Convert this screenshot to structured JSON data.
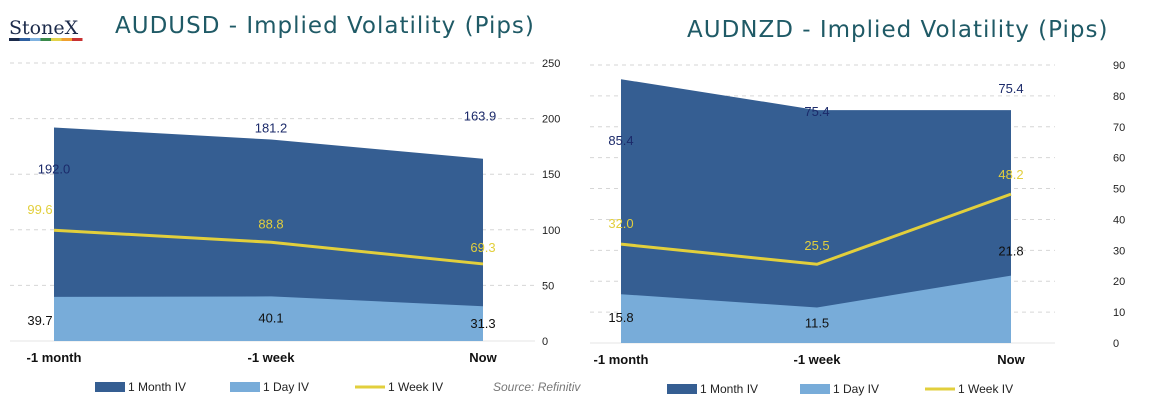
{
  "logo": {
    "text": "StoneX",
    "stripe_colors": [
      "#1b2a4a",
      "#2d5fa0",
      "#7fb2e0",
      "#3a8a4a",
      "#e3d34a",
      "#f0a030",
      "#c83232"
    ]
  },
  "source": "Source: Refinitiv",
  "colors": {
    "month": "#355e92",
    "day": "#78acd9",
    "week": "#e2cf3c",
    "month_label": "#1b2a6a",
    "day_label": "#111111",
    "week_label": "#e2cf3c"
  },
  "chart_data": [
    {
      "type": "area",
      "title": "AUDUSD - Implied Volatility (Pips)",
      "categories": [
        "-1 month",
        "-1 week",
        "Now"
      ],
      "series": [
        {
          "name": "1 Month IV",
          "kind": "area",
          "values": [
            192.0,
            181.2,
            163.9
          ]
        },
        {
          "name": "1 Day IV",
          "kind": "area",
          "values": [
            39.7,
            40.1,
            31.3
          ]
        },
        {
          "name": "1 Week IV",
          "kind": "line",
          "values": [
            99.6,
            88.8,
            69.3
          ]
        }
      ],
      "ylim": [
        0,
        250
      ],
      "yticks": [
        "0",
        "50",
        "100",
        "150",
        "200",
        "250"
      ],
      "grid": true,
      "legend": "bottom"
    },
    {
      "type": "area",
      "title": "AUDNZD - Implied Volatility (Pips)",
      "categories": [
        "-1 month",
        "-1 week",
        "Now"
      ],
      "series": [
        {
          "name": "1 Month IV",
          "kind": "area",
          "values": [
            85.4,
            75.4,
            75.4
          ]
        },
        {
          "name": "1 Day IV",
          "kind": "area",
          "values": [
            15.8,
            11.5,
            21.8
          ]
        },
        {
          "name": "1 Week IV",
          "kind": "line",
          "values": [
            32.0,
            25.5,
            48.2
          ]
        }
      ],
      "ylim": [
        0,
        90
      ],
      "yticks": [
        "0",
        "10",
        "20",
        "30",
        "40",
        "50",
        "60",
        "70",
        "80",
        "90"
      ],
      "grid": true,
      "legend": "bottom"
    }
  ]
}
